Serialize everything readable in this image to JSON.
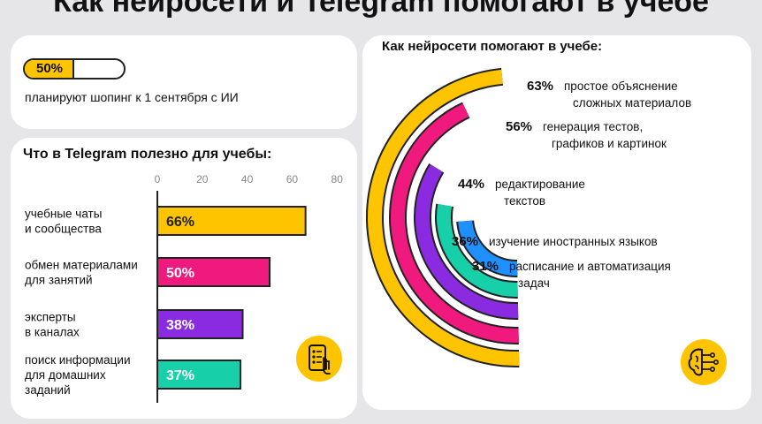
{
  "header": {
    "title": "Как нейросети и Telegram помогают в учебе"
  },
  "plan": {
    "value": 50,
    "label": "50%",
    "caption": "планируют шопинг к 1 сентября с ИИ"
  },
  "telegram": {
    "title": "Что в Telegram полезно для учебы:",
    "icon": "phone-touch-icon"
  },
  "ai": {
    "title": "Как нейросети помогают в учебе:",
    "icon": "brain-circuit-icon"
  },
  "chart_data": [
    {
      "type": "bar",
      "orientation": "horizontal",
      "xlim": [
        0,
        80
      ],
      "ticks": [
        0,
        20,
        40,
        60,
        80
      ],
      "categories": [
        [
          "учебные чаты",
          "и сообщества"
        ],
        [
          "обмен материалами",
          "для занятий"
        ],
        [
          "эксперты",
          "в каналах"
        ],
        [
          "поиск информации",
          "для домашних",
          "заданий"
        ]
      ],
      "values": [
        66,
        50,
        38,
        37
      ],
      "labels": [
        "66%",
        "50%",
        "38%",
        "37%"
      ],
      "colors": [
        "#ffc400",
        "#f0197d",
        "#8a2be2",
        "#17cfa8"
      ]
    },
    {
      "type": "radial-bar",
      "values": [
        63,
        56,
        44,
        36,
        31
      ],
      "labels": [
        "63%",
        "56%",
        "44%",
        "36%",
        "31%"
      ],
      "categories": [
        [
          "простое объяснение",
          "сложных материалов"
        ],
        [
          "генерация тестов,",
          "графиков и картинок"
        ],
        [
          "редактирование",
          "текстов"
        ],
        [
          "изучение иностранных языков"
        ],
        [
          "расписание и автоматизация",
          "задач"
        ]
      ],
      "colors": [
        "#ffc400",
        "#f0197d",
        "#8a2be2",
        "#17cfa8",
        "#1e90ff"
      ]
    }
  ]
}
